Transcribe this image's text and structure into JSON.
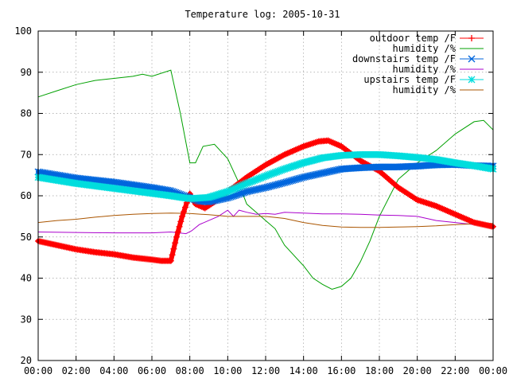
{
  "chart_data": {
    "type": "line",
    "title": "Temperature log: 2005-10-31",
    "xlabel": "",
    "ylabel": "",
    "xlim": [
      0,
      24
    ],
    "ylim": [
      20,
      100
    ],
    "x_ticks": [
      {
        "value": 0,
        "label": "00:00"
      },
      {
        "value": 2,
        "label": "02:00"
      },
      {
        "value": 4,
        "label": "04:00"
      },
      {
        "value": 6,
        "label": "06:00"
      },
      {
        "value": 8,
        "label": "08:00"
      },
      {
        "value": 10,
        "label": "10:00"
      },
      {
        "value": 12,
        "label": "12:00"
      },
      {
        "value": 14,
        "label": "14:00"
      },
      {
        "value": 16,
        "label": "16:00"
      },
      {
        "value": 18,
        "label": "18:00"
      },
      {
        "value": 20,
        "label": "20:00"
      },
      {
        "value": 22,
        "label": "22:00"
      },
      {
        "value": 24,
        "label": "00:00"
      }
    ],
    "y_ticks": [
      20,
      30,
      40,
      50,
      60,
      70,
      80,
      90,
      100
    ],
    "grid": true,
    "legend_position": "top-right",
    "series": [
      {
        "name": "outdoor temp /F",
        "color": "#ff0000",
        "marker": "plus",
        "points": [
          [
            0,
            49
          ],
          [
            1,
            48
          ],
          [
            2,
            47
          ],
          [
            3,
            46.3
          ],
          [
            4,
            45.8
          ],
          [
            5,
            45
          ],
          [
            6,
            44.5
          ],
          [
            6.5,
            44.2
          ],
          [
            7,
            44.2
          ],
          [
            7.3,
            50
          ],
          [
            7.6,
            55
          ],
          [
            8,
            60.5
          ],
          [
            8.3,
            58
          ],
          [
            8.8,
            57
          ],
          [
            9.3,
            58.5
          ],
          [
            10,
            61
          ],
          [
            11,
            64.5
          ],
          [
            12,
            67.5
          ],
          [
            13,
            70
          ],
          [
            14,
            72
          ],
          [
            14.8,
            73.2
          ],
          [
            15.3,
            73.4
          ],
          [
            16,
            72
          ],
          [
            17,
            68.5
          ],
          [
            18,
            66
          ],
          [
            19,
            62
          ],
          [
            20,
            59
          ],
          [
            21,
            57.5
          ],
          [
            22,
            55.5
          ],
          [
            23,
            53.5
          ],
          [
            24,
            52.5
          ]
        ]
      },
      {
        "name": "humidity /%",
        "color": "#00a000",
        "marker": "none",
        "points": [
          [
            0,
            84
          ],
          [
            1,
            85.5
          ],
          [
            2,
            87
          ],
          [
            3,
            88
          ],
          [
            4,
            88.5
          ],
          [
            5,
            89
          ],
          [
            5.5,
            89.5
          ],
          [
            6,
            89
          ],
          [
            7,
            90.5
          ],
          [
            7.5,
            80
          ],
          [
            8,
            68
          ],
          [
            8.3,
            68
          ],
          [
            8.7,
            72
          ],
          [
            9.3,
            72.5
          ],
          [
            10,
            69
          ],
          [
            10.5,
            64
          ],
          [
            11,
            58
          ],
          [
            11.5,
            56
          ],
          [
            12,
            54
          ],
          [
            12.5,
            52
          ],
          [
            13,
            48
          ],
          [
            14,
            43
          ],
          [
            14.5,
            40
          ],
          [
            15,
            38.5
          ],
          [
            15.5,
            37.3
          ],
          [
            16,
            38
          ],
          [
            16.5,
            40
          ],
          [
            17,
            44
          ],
          [
            17.5,
            49
          ],
          [
            18,
            55
          ],
          [
            19,
            64
          ],
          [
            20,
            68
          ],
          [
            21,
            71
          ],
          [
            22,
            75
          ],
          [
            23,
            78
          ],
          [
            23.5,
            78.3
          ],
          [
            24,
            76
          ]
        ]
      },
      {
        "name": "downstairs temp /F",
        "color": "#0066dd",
        "marker": "x",
        "points": [
          [
            0,
            65.8
          ],
          [
            2,
            64.3
          ],
          [
            4,
            63.3
          ],
          [
            6,
            62
          ],
          [
            7,
            61.2
          ],
          [
            8,
            59.5
          ],
          [
            8.5,
            58.7
          ],
          [
            9,
            58.5
          ],
          [
            10,
            59.5
          ],
          [
            11,
            61
          ],
          [
            12,
            62
          ],
          [
            13,
            63.2
          ],
          [
            14,
            64.5
          ],
          [
            15,
            65.5
          ],
          [
            16,
            66.5
          ],
          [
            17,
            66.8
          ],
          [
            18,
            67
          ],
          [
            19,
            67
          ],
          [
            20,
            67.2
          ],
          [
            21,
            67.5
          ],
          [
            22,
            67.6
          ],
          [
            23,
            67.3
          ],
          [
            24,
            67.2
          ]
        ]
      },
      {
        "name": "humidity /%",
        "color": "#aa00cc",
        "marker": "none",
        "points": [
          [
            0,
            51.2
          ],
          [
            2,
            51.1
          ],
          [
            4,
            51
          ],
          [
            6,
            51
          ],
          [
            7,
            51.2
          ],
          [
            7.8,
            50.8
          ],
          [
            8.1,
            51.5
          ],
          [
            8.5,
            53
          ],
          [
            9,
            54
          ],
          [
            9.5,
            55
          ],
          [
            10,
            56.5
          ],
          [
            10.3,
            55
          ],
          [
            10.6,
            56.5
          ],
          [
            11,
            56
          ],
          [
            11.5,
            55.5
          ],
          [
            12,
            55.7
          ],
          [
            12.5,
            55.5
          ],
          [
            13,
            56
          ],
          [
            14,
            55.8
          ],
          [
            15,
            55.6
          ],
          [
            16,
            55.6
          ],
          [
            17,
            55.5
          ],
          [
            18,
            55.3
          ],
          [
            19,
            55.2
          ],
          [
            20,
            55
          ],
          [
            21,
            54
          ],
          [
            22,
            53.5
          ],
          [
            23,
            53
          ],
          [
            24,
            52.3
          ]
        ]
      },
      {
        "name": "upstairs temp /F",
        "color": "#00dddd",
        "marker": "star",
        "points": [
          [
            0,
            64.5
          ],
          [
            2,
            63
          ],
          [
            4,
            61.8
          ],
          [
            6,
            60.6
          ],
          [
            7,
            60
          ],
          [
            8,
            59.3
          ],
          [
            9,
            59.6
          ],
          [
            10,
            61
          ],
          [
            11,
            63
          ],
          [
            12,
            64.8
          ],
          [
            13,
            66.5
          ],
          [
            14,
            68
          ],
          [
            15,
            69.2
          ],
          [
            16,
            69.8
          ],
          [
            17,
            70
          ],
          [
            18,
            70
          ],
          [
            19,
            69.7
          ],
          [
            20,
            69.3
          ],
          [
            21,
            68.8
          ],
          [
            22,
            68
          ],
          [
            23,
            67.3
          ],
          [
            24,
            66.5
          ]
        ]
      },
      {
        "name": "humidity /%",
        "color": "#aa5500",
        "marker": "none",
        "points": [
          [
            0,
            53.5
          ],
          [
            1,
            54
          ],
          [
            2,
            54.3
          ],
          [
            3,
            54.8
          ],
          [
            4,
            55.2
          ],
          [
            5,
            55.5
          ],
          [
            6,
            55.7
          ],
          [
            7,
            55.8
          ],
          [
            8,
            55.7
          ],
          [
            9,
            55.4
          ],
          [
            10,
            55
          ],
          [
            11,
            55
          ],
          [
            12,
            55
          ],
          [
            13,
            54.5
          ],
          [
            14,
            53.5
          ],
          [
            15,
            52.8
          ],
          [
            16,
            52.4
          ],
          [
            17,
            52.3
          ],
          [
            18,
            52.3
          ],
          [
            19,
            52.4
          ],
          [
            20,
            52.5
          ],
          [
            21,
            52.7
          ],
          [
            22,
            53
          ],
          [
            23,
            53.2
          ],
          [
            24,
            53.3
          ]
        ]
      }
    ]
  }
}
